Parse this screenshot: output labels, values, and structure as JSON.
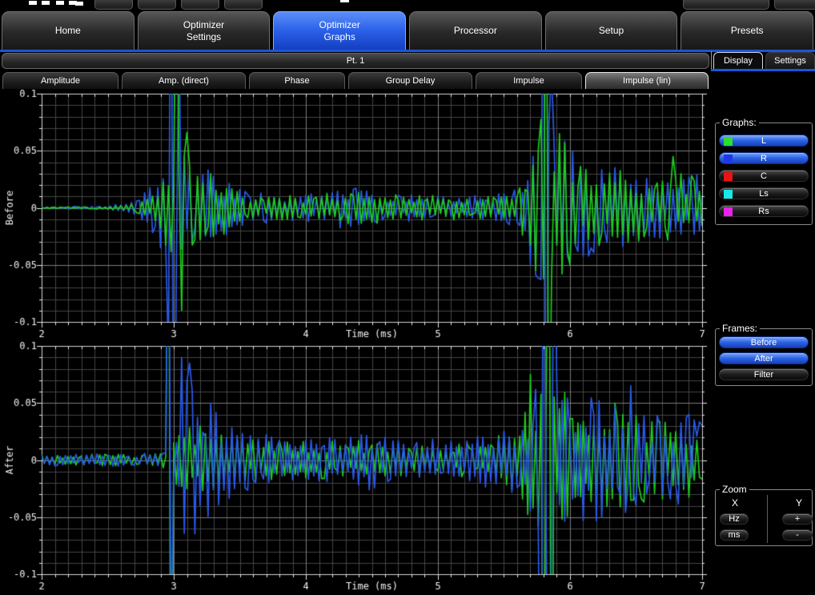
{
  "header": {
    "tabs": [
      {
        "label": "Home",
        "active": false
      },
      {
        "label": "Optimizer\nSettings",
        "active": false
      },
      {
        "label": "Optimizer\nGraphs",
        "active": true
      },
      {
        "label": "Processor",
        "active": false
      },
      {
        "label": "Setup",
        "active": false
      },
      {
        "label": "Presets",
        "active": false
      }
    ]
  },
  "point_selector": {
    "label": "Pt. 1"
  },
  "panel_tabs": [
    {
      "label": "Display",
      "active": true
    },
    {
      "label": "Settings",
      "active": false
    }
  ],
  "graph_tabs": [
    {
      "label": "Amplitude",
      "active": false
    },
    {
      "label": "Amp. (direct)",
      "active": false
    },
    {
      "label": "Phase",
      "active": false
    },
    {
      "label": "Group Delay",
      "active": false
    },
    {
      "label": "Impulse",
      "active": false
    },
    {
      "label": "Impulse (lin)",
      "active": true
    }
  ],
  "graphs_panel": {
    "label": "Graphs:",
    "buttons": [
      {
        "label": "L",
        "swatch": "#2ae02a",
        "active": true
      },
      {
        "label": "R",
        "swatch": "#2038e8",
        "active": true
      },
      {
        "label": "C",
        "swatch": "#e81414",
        "active": false
      },
      {
        "label": "Ls",
        "swatch": "#18e8e8",
        "active": false
      },
      {
        "label": "Rs",
        "swatch": "#e824e8",
        "active": false
      }
    ]
  },
  "frames_panel": {
    "label": "Frames:",
    "buttons": [
      {
        "label": "Before",
        "active": true
      },
      {
        "label": "After",
        "active": true
      },
      {
        "label": "Filter",
        "active": false
      }
    ]
  },
  "zoom_panel": {
    "label": "Zoom",
    "x_header": "X",
    "y_header": "Y",
    "x_buttons": [
      "Hz",
      "ms"
    ],
    "y_buttons": [
      "+",
      "-"
    ]
  },
  "chart_data": [
    {
      "type": "line",
      "title": "Before impulse response (linear)",
      "ylabel": "Before",
      "xlabel": "Time (ms)",
      "xlim": [
        2,
        7
      ],
      "ylim": [
        -0.1,
        0.1
      ],
      "xticks": [
        2,
        3,
        4,
        5,
        6,
        7
      ],
      "yticks": [
        0.1,
        0.05,
        0,
        -0.05,
        -0.1
      ],
      "minor_x": 0.1,
      "minor_y": 0.01,
      "grid": true,
      "series": [
        {
          "name": "R",
          "color": "#2a5ae8",
          "seed": 202,
          "step": 0.02,
          "envelope": [
            [
              2,
              0.0008
            ],
            [
              2.5,
              0.0015
            ],
            [
              2.7,
              0.006
            ],
            [
              2.8,
              0.015
            ],
            [
              2.9,
              0.045
            ],
            [
              3.0,
              0.09
            ],
            [
              3.1,
              0.05
            ],
            [
              3.3,
              0.03
            ],
            [
              3.55,
              0.014
            ],
            [
              4.0,
              0.012
            ],
            [
              4.35,
              0.02
            ],
            [
              4.7,
              0.012
            ],
            [
              5.1,
              0.011
            ],
            [
              5.5,
              0.013
            ],
            [
              5.65,
              0.03
            ],
            [
              5.78,
              0.09
            ],
            [
              5.95,
              0.06
            ],
            [
              6.2,
              0.04
            ],
            [
              6.5,
              0.032
            ],
            [
              6.8,
              0.028
            ],
            [
              7,
              0.03
            ]
          ],
          "spikes": [
            [
              2.96,
              -0.13
            ],
            [
              2.98,
              0.32
            ],
            [
              3.0,
              -0.34
            ],
            [
              3.04,
              0.16
            ],
            [
              5.79,
              0.3
            ],
            [
              5.82,
              -0.32
            ],
            [
              5.86,
              0.12
            ]
          ]
        },
        {
          "name": "L",
          "color": "#1ecc1e",
          "seed": 101,
          "step": 0.02,
          "envelope": [
            [
              2,
              0.0008
            ],
            [
              2.5,
              0.0012
            ],
            [
              2.7,
              0.004
            ],
            [
              2.85,
              0.012
            ],
            [
              2.95,
              0.04
            ],
            [
              3.05,
              0.07
            ],
            [
              3.15,
              0.045
            ],
            [
              3.35,
              0.025
            ],
            [
              3.6,
              0.012
            ],
            [
              4.0,
              0.011
            ],
            [
              4.4,
              0.016
            ],
            [
              4.8,
              0.011
            ],
            [
              5.2,
              0.011
            ],
            [
              5.55,
              0.013
            ],
            [
              5.7,
              0.035
            ],
            [
              5.8,
              0.1
            ],
            [
              5.9,
              0.08
            ],
            [
              6.05,
              0.045
            ],
            [
              6.35,
              0.035
            ],
            [
              6.7,
              0.03
            ],
            [
              7,
              0.03
            ]
          ],
          "spikes": [
            [
              3.02,
              0.28
            ],
            [
              3.06,
              -0.09
            ],
            [
              3.1,
              0.066
            ],
            [
              5.82,
              0.3
            ],
            [
              5.85,
              -0.28
            ],
            [
              6.78,
              0.045
            ]
          ]
        }
      ]
    },
    {
      "type": "line",
      "title": "After impulse response (linear)",
      "ylabel": "After",
      "xlabel": "Time (ms)",
      "xlim": [
        2,
        7
      ],
      "ylim": [
        -0.1,
        0.1
      ],
      "xticks": [
        2,
        3,
        4,
        5,
        6,
        7
      ],
      "yticks": [
        0.1,
        0.05,
        0,
        -0.05,
        -0.1
      ],
      "minor_x": 0.1,
      "minor_y": 0.01,
      "grid": true,
      "series": [
        {
          "name": "L",
          "color": "#1ecc1e",
          "seed": 303,
          "step": 0.02,
          "envelope": [
            [
              2,
              0.005
            ],
            [
              2.9,
              0.0055
            ],
            [
              2.97,
              0.01
            ],
            [
              3.05,
              0.04
            ],
            [
              3.25,
              0.03
            ],
            [
              3.5,
              0.02
            ],
            [
              3.9,
              0.016
            ],
            [
              4.3,
              0.018
            ],
            [
              4.8,
              0.014
            ],
            [
              5.2,
              0.016
            ],
            [
              5.55,
              0.025
            ],
            [
              5.68,
              0.05
            ],
            [
              5.8,
              0.07
            ],
            [
              5.95,
              0.06
            ],
            [
              6.2,
              0.045
            ],
            [
              6.5,
              0.04
            ],
            [
              6.8,
              0.035
            ],
            [
              7,
              0.03
            ]
          ],
          "spikes": [
            [
              2.955,
              0.34
            ],
            [
              2.975,
              -0.36
            ],
            [
              5.7,
              0.075
            ],
            [
              5.8,
              -0.3
            ],
            [
              5.83,
              0.32
            ],
            [
              5.86,
              -0.34
            ],
            [
              6.33,
              0.05
            ]
          ]
        },
        {
          "name": "R",
          "color": "#2a5ae8",
          "seed": 404,
          "step": 0.02,
          "envelope": [
            [
              2,
              0.005
            ],
            [
              2.9,
              0.006
            ],
            [
              3.0,
              0.03
            ],
            [
              3.08,
              0.075
            ],
            [
              3.25,
              0.055
            ],
            [
              3.5,
              0.03
            ],
            [
              3.8,
              0.018
            ],
            [
              4.2,
              0.02
            ],
            [
              4.5,
              0.028
            ],
            [
              4.8,
              0.018
            ],
            [
              5.1,
              0.02
            ],
            [
              5.45,
              0.025
            ],
            [
              5.65,
              0.04
            ],
            [
              5.8,
              0.08
            ],
            [
              6.0,
              0.06
            ],
            [
              6.3,
              0.05
            ],
            [
              6.6,
              0.04
            ],
            [
              7,
              0.04
            ]
          ],
          "spikes": [
            [
              2.96,
              0.3
            ],
            [
              2.98,
              -0.15
            ],
            [
              3.06,
              0.09
            ],
            [
              3.12,
              0.085
            ],
            [
              5.78,
              -0.34
            ],
            [
              5.81,
              0.36
            ],
            [
              5.84,
              -0.32
            ],
            [
              5.87,
              0.25
            ],
            [
              6.45,
              0.065
            ]
          ]
        }
      ]
    }
  ]
}
